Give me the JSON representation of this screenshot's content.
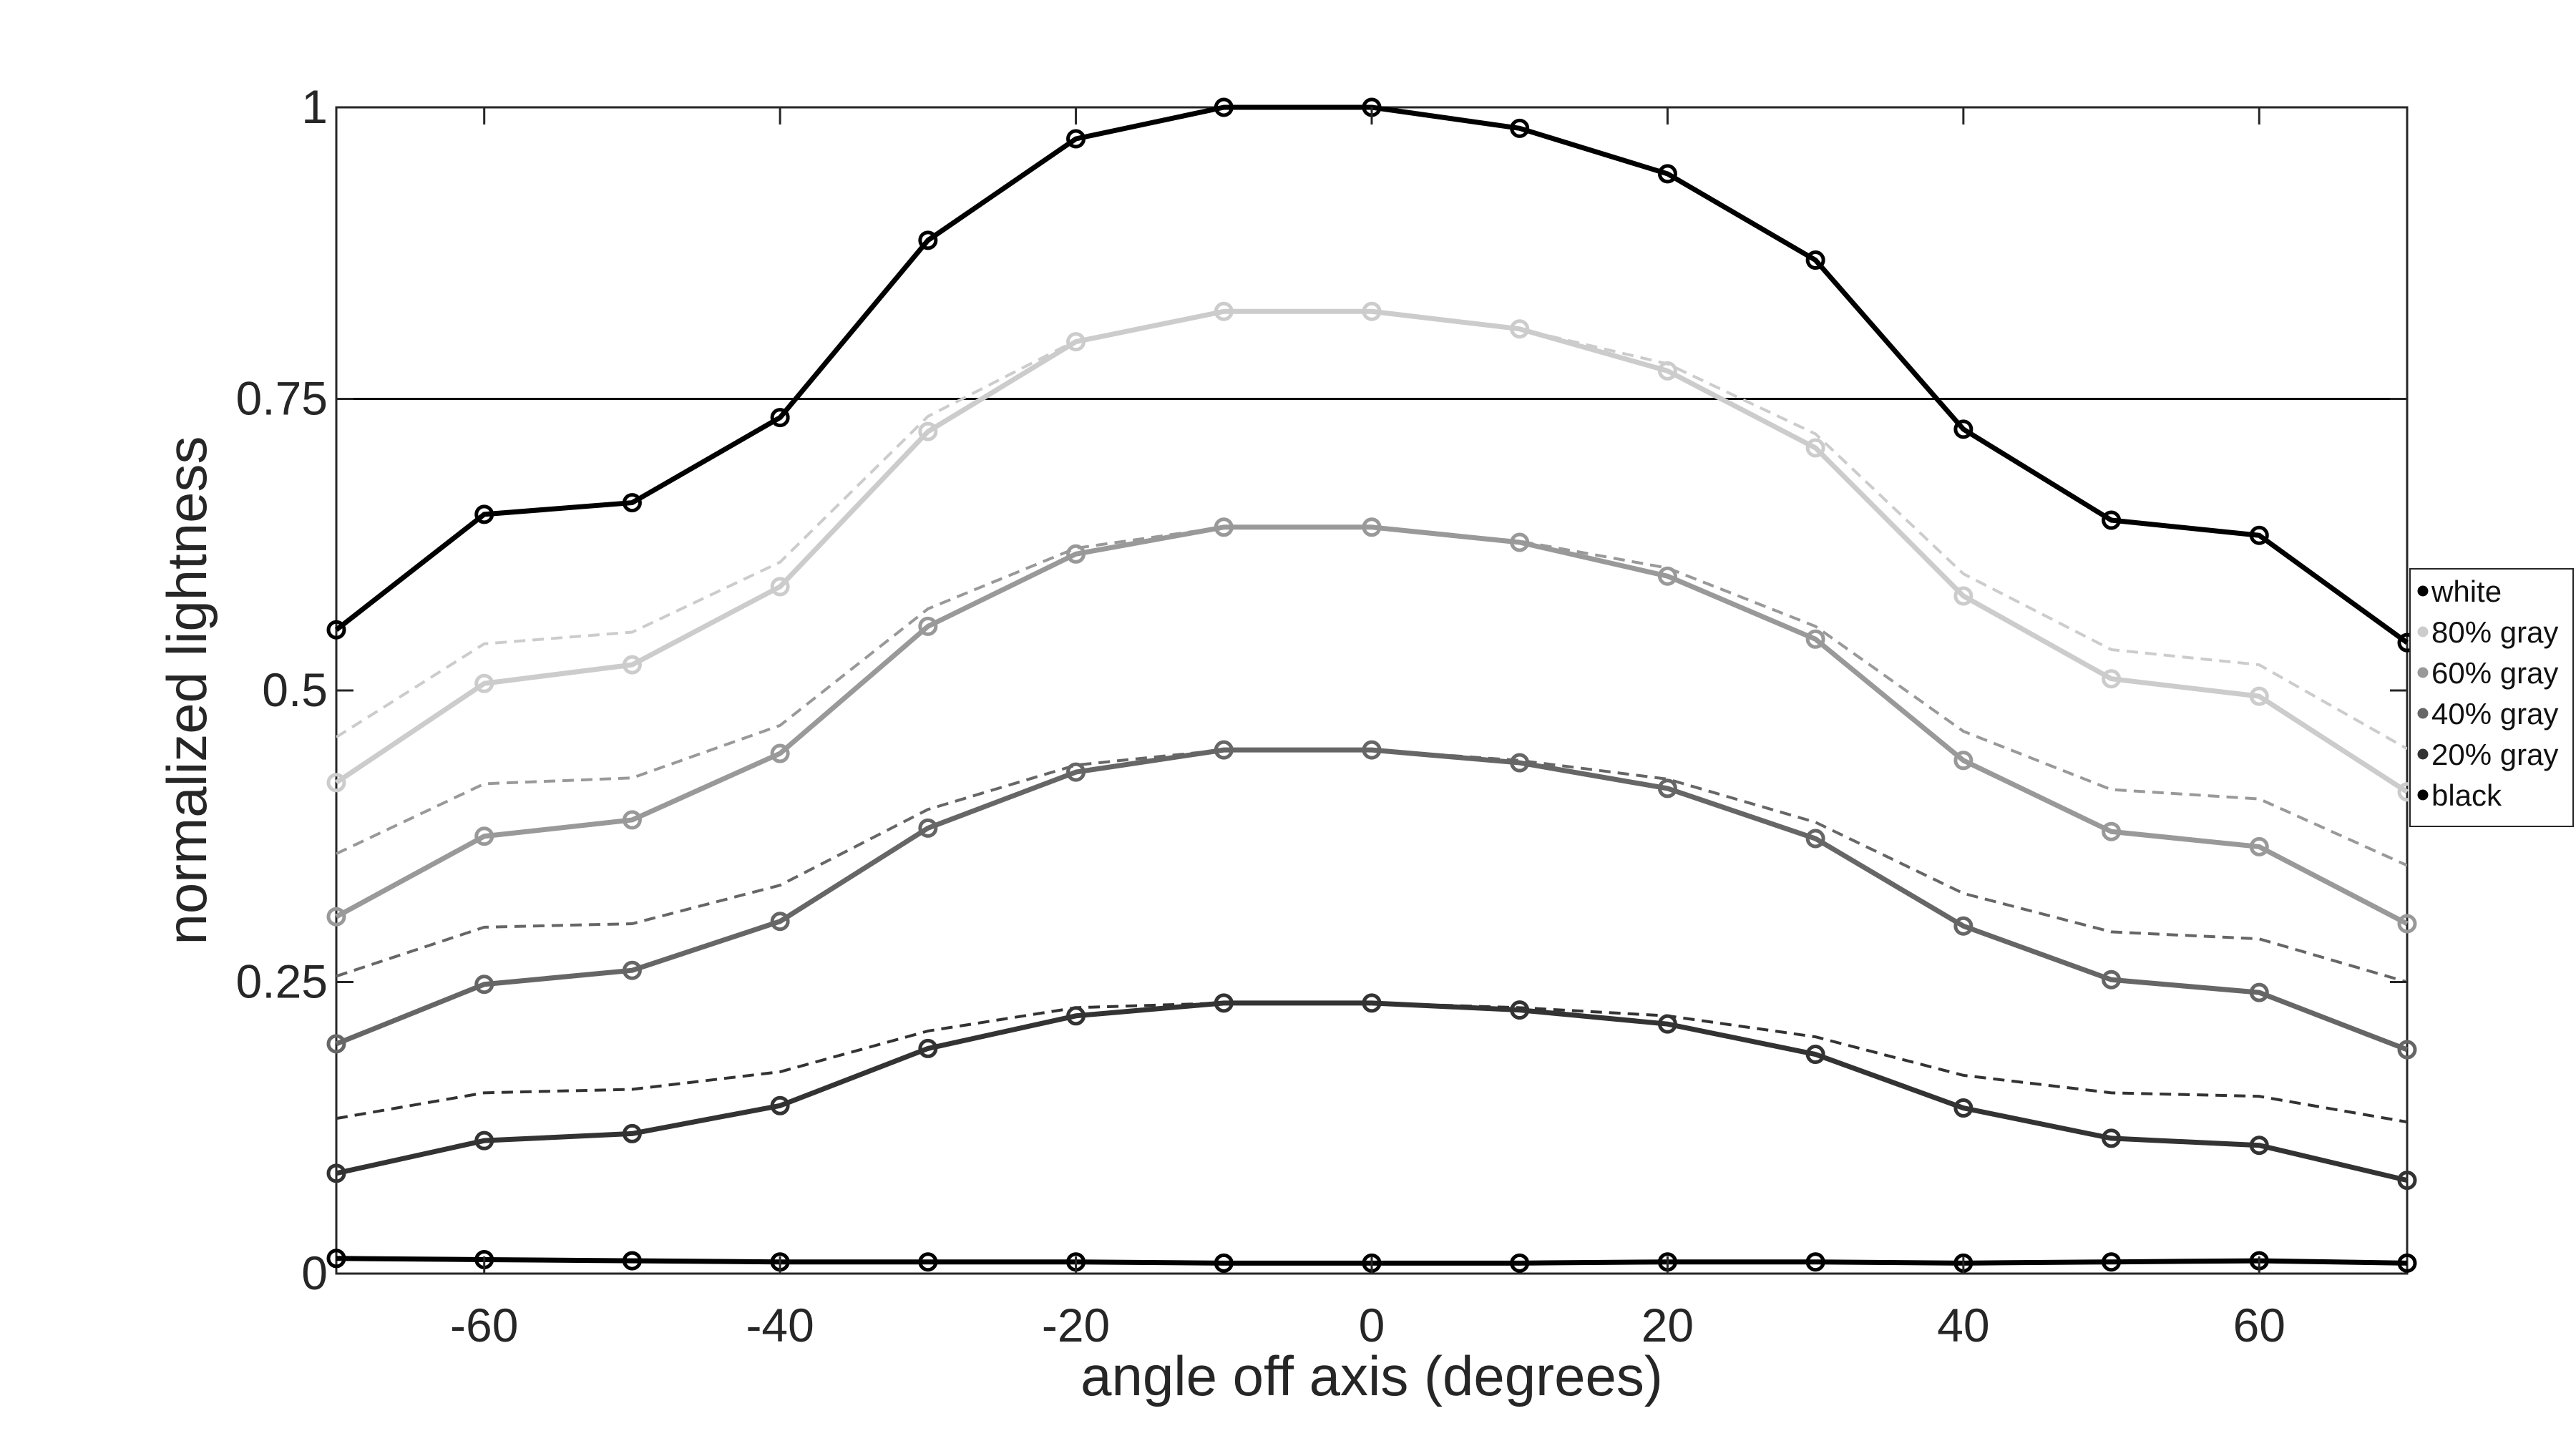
{
  "chart_data": {
    "type": "line",
    "title": "",
    "xlabel": "angle off axis (degrees)",
    "ylabel": "normalized lightness",
    "xlim": [
      -70,
      70
    ],
    "ylim": [
      0,
      1
    ],
    "xticks": [
      -60,
      -40,
      -20,
      0,
      20,
      40,
      60
    ],
    "xtick_labels": [
      "-60",
      "-40",
      "-20",
      "0",
      "20",
      "40",
      "60"
    ],
    "yticks": [
      0,
      0.25,
      0.5,
      0.75,
      1
    ],
    "ytick_labels": [
      "0",
      "0.25",
      "0.5",
      "0.75",
      "1"
    ],
    "grid": false,
    "legend_position": "right",
    "reference_line": {
      "y": 0.75,
      "color": "#000000"
    },
    "x": [
      -70,
      -60,
      -50,
      -40,
      -30,
      -20,
      -10,
      0,
      10,
      20,
      30,
      40,
      50,
      60,
      70
    ],
    "series": [
      {
        "name": "white",
        "color": "#000000",
        "values": [
          0.552,
          0.651,
          0.661,
          0.734,
          0.886,
          0.973,
          1.0,
          1.0,
          0.982,
          0.943,
          0.869,
          0.724,
          0.646,
          0.633,
          0.541
        ]
      },
      {
        "name": "80% gray",
        "color": "#cccccc",
        "values": [
          0.421,
          0.506,
          0.522,
          0.589,
          0.722,
          0.799,
          0.825,
          0.825,
          0.81,
          0.774,
          0.708,
          0.581,
          0.51,
          0.495,
          0.413
        ],
        "reference": [
          0.46,
          0.54,
          0.55,
          0.61,
          0.735,
          0.8,
          0.825,
          0.825,
          0.81,
          0.78,
          0.72,
          0.6,
          0.535,
          0.522,
          0.45
        ]
      },
      {
        "name": "60% gray",
        "color": "#999999",
        "values": [
          0.306,
          0.375,
          0.389,
          0.446,
          0.555,
          0.617,
          0.64,
          0.64,
          0.627,
          0.598,
          0.544,
          0.44,
          0.379,
          0.366,
          0.3
        ],
        "reference": [
          0.36,
          0.42,
          0.425,
          0.47,
          0.57,
          0.622,
          0.64,
          0.64,
          0.628,
          0.605,
          0.555,
          0.465,
          0.415,
          0.407,
          0.35
        ]
      },
      {
        "name": "40% gray",
        "color": "#666666",
        "values": [
          0.197,
          0.248,
          0.26,
          0.302,
          0.382,
          0.43,
          0.449,
          0.449,
          0.438,
          0.416,
          0.373,
          0.298,
          0.252,
          0.241,
          0.192
        ],
        "reference": [
          0.255,
          0.297,
          0.3,
          0.333,
          0.398,
          0.436,
          0.449,
          0.449,
          0.44,
          0.424,
          0.387,
          0.326,
          0.293,
          0.287,
          0.25
        ]
      },
      {
        "name": "20% gray",
        "color": "#333333",
        "values": [
          0.086,
          0.114,
          0.12,
          0.144,
          0.193,
          0.221,
          0.232,
          0.232,
          0.226,
          0.214,
          0.188,
          0.142,
          0.116,
          0.11,
          0.08
        ],
        "reference": [
          0.133,
          0.155,
          0.158,
          0.173,
          0.208,
          0.228,
          0.232,
          0.232,
          0.228,
          0.221,
          0.203,
          0.17,
          0.155,
          0.152,
          0.13
        ]
      },
      {
        "name": "black",
        "color": "#000000",
        "values": [
          0.013,
          0.012,
          0.011,
          0.01,
          0.01,
          0.01,
          0.009,
          0.009,
          0.009,
          0.01,
          0.01,
          0.009,
          0.01,
          0.011,
          0.009
        ]
      }
    ]
  }
}
